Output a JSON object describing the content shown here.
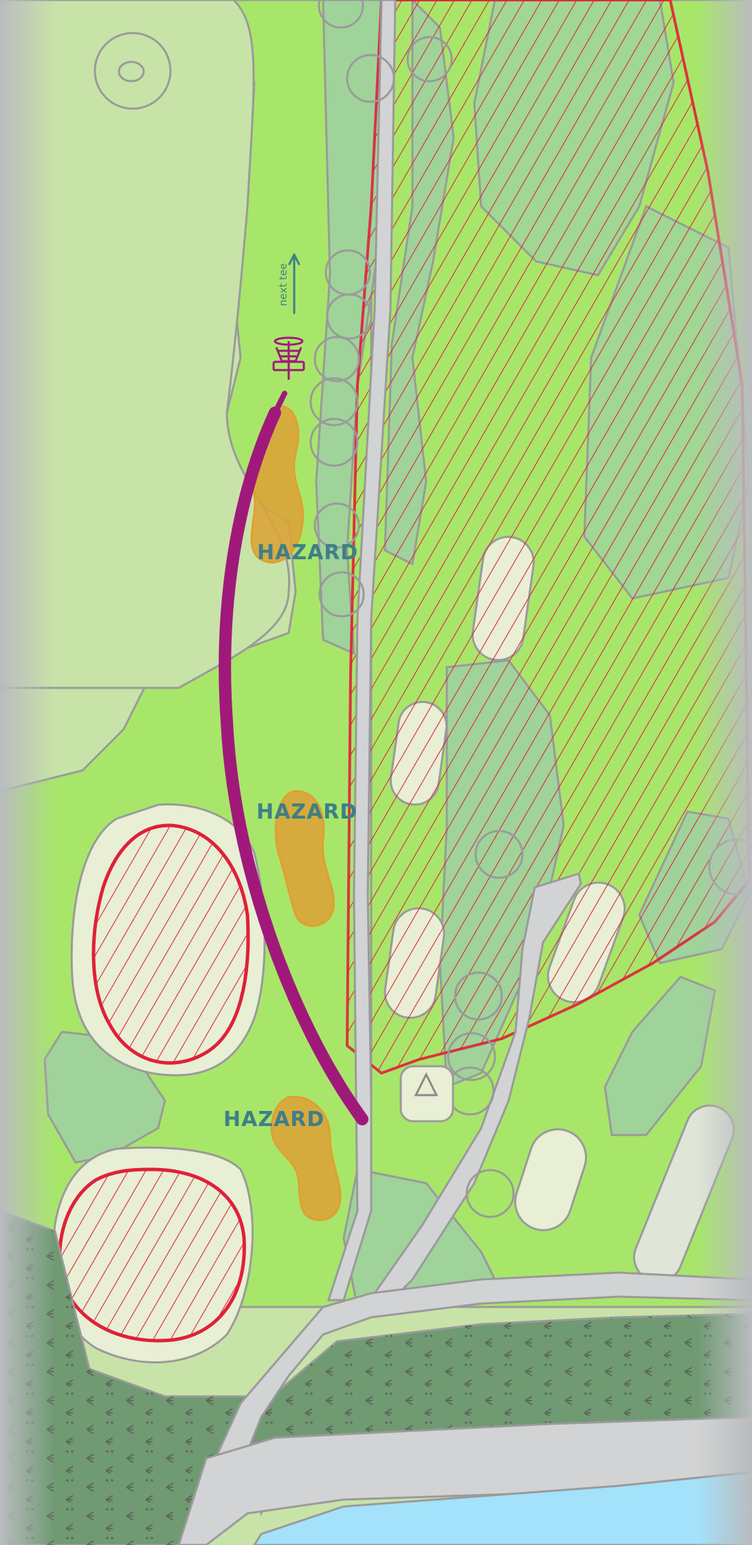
{
  "map": {
    "labels": {
      "hazard_1": "HAZARD",
      "hazard_2": "HAZARD",
      "hazard_3": "HAZARD",
      "next_tee": "next tee"
    },
    "colors": {
      "fairway": "#a8e66a",
      "rough": "#c8e3a8",
      "trees": "#9fd39a",
      "hazard": "#d9a43a",
      "out_of_bounds": "#e0203a",
      "flight_path": "#a0197a",
      "water": "#a3e2fa",
      "path": "#d2d3d4",
      "forest": "#6f9a72",
      "basket": "#a0197a"
    },
    "icons": [
      "basket-icon",
      "tee-triangle-icon",
      "arrow-up-icon"
    ]
  }
}
